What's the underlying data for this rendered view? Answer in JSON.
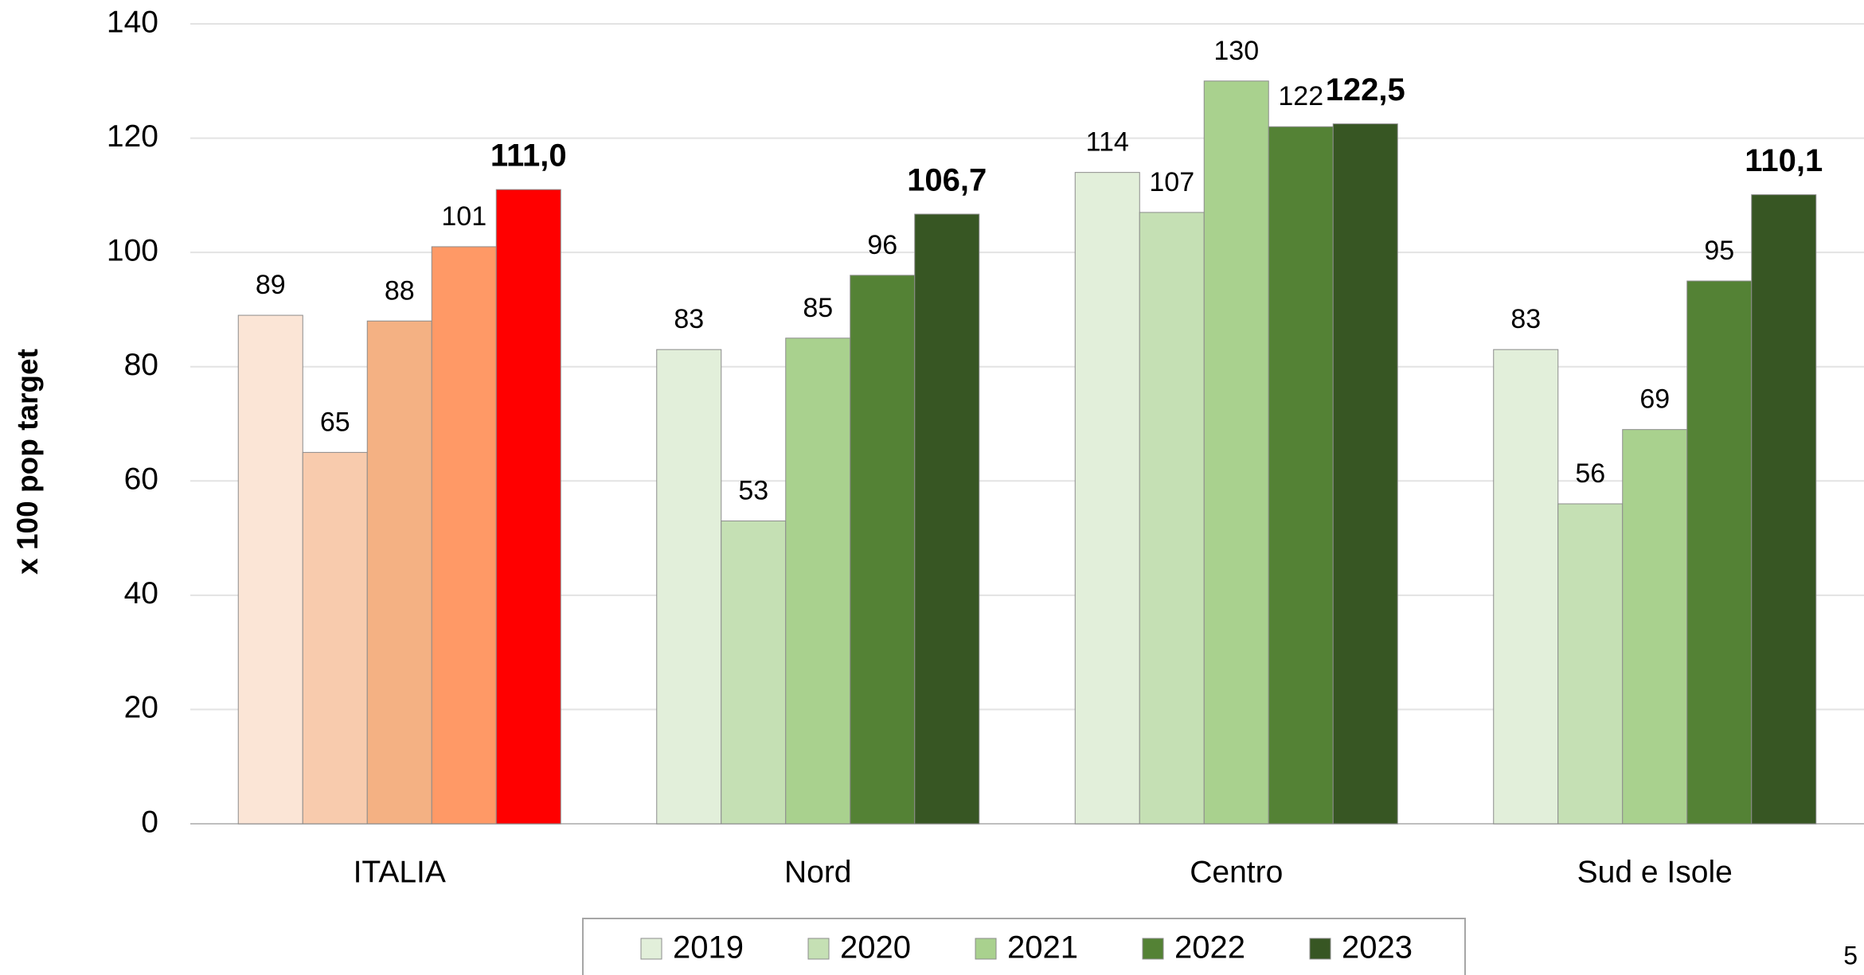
{
  "chart_data": {
    "type": "bar",
    "y_axis_label": "x 100 pop target",
    "categories": [
      "ITALIA",
      "Nord",
      "Centro",
      "Sud e Isole"
    ],
    "series": [
      {
        "name": "2019",
        "color": "#e2efda",
        "colors": [
          "#fbe5d6",
          "#e2efda",
          "#e2efda",
          "#e2efda"
        ],
        "values": [
          89,
          83,
          114,
          83
        ]
      },
      {
        "name": "2020",
        "color": "#c5e0b4",
        "colors": [
          "#f8cbad",
          "#c5e0b4",
          "#c5e0b4",
          "#c5e0b4"
        ],
        "values": [
          65,
          53,
          107,
          56
        ]
      },
      {
        "name": "2021",
        "color": "#a9d18e",
        "colors": [
          "#f4b183",
          "#a9d18e",
          "#a9d18e",
          "#a9d18e"
        ],
        "values": [
          88,
          85,
          130,
          69
        ]
      },
      {
        "name": "2022",
        "color": "#548235",
        "colors": [
          "#ff9966",
          "#548235",
          "#548235",
          "#548235"
        ],
        "values": [
          101,
          96,
          122,
          95
        ]
      },
      {
        "name": "2023",
        "color": "#375623",
        "colors": [
          "#ff0000",
          "#375623",
          "#375623",
          "#375623"
        ],
        "values": [
          111.0,
          106.7,
          122.5,
          110.1
        ],
        "value_labels": [
          "111,0",
          "106,7",
          "122,5",
          "110,1"
        ],
        "label_bold": true
      }
    ],
    "ylim": [
      0,
      140
    ],
    "yticks": [
      0,
      20,
      40,
      60,
      80,
      100,
      120,
      140
    ],
    "grid": true,
    "legend": "bottom",
    "page_number": "5"
  }
}
